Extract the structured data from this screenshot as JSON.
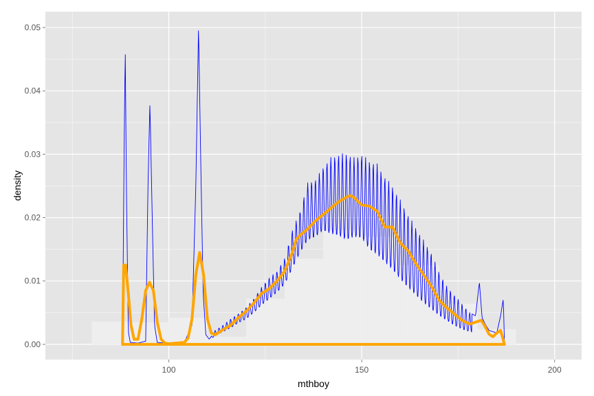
{
  "chart_data": {
    "type": "area",
    "title": "",
    "xlabel": "mthboy",
    "ylabel": "density",
    "xlim": [
      68,
      207
    ],
    "ylim": [
      -0.0024,
      0.0525
    ],
    "x_ticks": [
      100,
      150,
      200
    ],
    "x_tick_labels": [
      "100",
      "150",
      "200"
    ],
    "y_ticks": [
      0.0,
      0.01,
      0.02,
      0.03,
      0.04,
      0.05
    ],
    "y_tick_labels": [
      "0.00",
      "0.01",
      "0.02",
      "0.03",
      "0.04",
      "0.05"
    ],
    "grid": true,
    "legend": "none",
    "colors": {
      "panel": "#e5e5e5",
      "grid_major": "#ffffff",
      "grid_minor": "#f2f2f2",
      "histogram": "#eeeeee",
      "fine_density": "#0000ff",
      "smooth_density": "#ffa500"
    },
    "histogram": {
      "bins": [
        {
          "x0": 80,
          "x1": 90,
          "y": 0.0036
        },
        {
          "x0": 90,
          "x1": 100,
          "y": 0.0035
        },
        {
          "x0": 100,
          "x1": 110,
          "y": 0.0042
        },
        {
          "x0": 110,
          "x1": 120,
          "y": 0.0012
        },
        {
          "x0": 120,
          "x1": 130,
          "y": 0.0072
        },
        {
          "x0": 130,
          "x1": 140,
          "y": 0.0135
        },
        {
          "x0": 140,
          "x1": 150,
          "y": 0.018
        },
        {
          "x0": 150,
          "x1": 160,
          "y": 0.017
        },
        {
          "x0": 160,
          "x1": 170,
          "y": 0.0125
        },
        {
          "x0": 170,
          "x1": 180,
          "y": 0.0064
        },
        {
          "x0": 180,
          "x1": 190,
          "y": 0.0024
        }
      ]
    },
    "series": [
      {
        "kind": "fine_density",
        "x": [
          88,
          88.4,
          88.7,
          89.0,
          89.5,
          90,
          92,
          94,
          94.6,
          95.1,
          95.7,
          96.3,
          97,
          100,
          104,
          106,
          107,
          107.7,
          108.3,
          108.9,
          109.6,
          110.5,
          112,
          114,
          116,
          118,
          120,
          122,
          124,
          126,
          128,
          130,
          132,
          134,
          136,
          138,
          140,
          142,
          144,
          146,
          148,
          150,
          152,
          154,
          156,
          158,
          160,
          162,
          164,
          166,
          168,
          170,
          172,
          174,
          176,
          178,
          179.5,
          180.5,
          181.2,
          182,
          183,
          185,
          186,
          186.7,
          187
        ],
        "y": [
          0,
          0.03,
          0.0472,
          0.025,
          0.002,
          0.0003,
          0.0002,
          0.0005,
          0.025,
          0.0382,
          0.02,
          0.003,
          0.0003,
          0.0002,
          0.0003,
          0.003,
          0.025,
          0.0502,
          0.028,
          0.008,
          0.0015,
          0.0008,
          0.0022,
          0.003,
          0.004,
          0.0048,
          0.0058,
          0.0072,
          0.009,
          0.0105,
          0.0115,
          0.0135,
          0.018,
          0.021,
          0.0255,
          0.026,
          0.028,
          0.0295,
          0.03,
          0.0302,
          0.0295,
          0.03,
          0.029,
          0.0285,
          0.0265,
          0.025,
          0.0228,
          0.0205,
          0.0185,
          0.0165,
          0.0145,
          0.0115,
          0.0092,
          0.0078,
          0.0064,
          0.005,
          0.0045,
          0.0098,
          0.0042,
          0.0032,
          0.0022,
          0.0018,
          0.0045,
          0.0072,
          0
        ],
        "low": [
          0,
          0,
          0,
          0,
          0,
          0,
          0,
          0,
          0,
          0,
          0,
          0,
          0,
          0,
          0,
          0,
          0,
          0,
          0,
          0,
          0.0008,
          0.0006,
          0.0014,
          0.002,
          0.0026,
          0.0034,
          0.004,
          0.005,
          0.0062,
          0.0072,
          0.0082,
          0.0095,
          0.012,
          0.0145,
          0.0165,
          0.017,
          0.018,
          0.0175,
          0.0172,
          0.0165,
          0.017,
          0.0168,
          0.015,
          0.0142,
          0.013,
          0.0118,
          0.0103,
          0.009,
          0.0078,
          0.0066,
          0.0056,
          0.0046,
          0.0038,
          0.003,
          0.0024,
          0.002,
          0.0018,
          0.0016,
          0.0015,
          0.0013,
          0.0012,
          0.0012,
          0.0012,
          0.0012,
          0
        ]
      },
      {
        "kind": "smooth_density",
        "x": [
          88,
          88.3,
          88.8,
          89.5,
          90.2,
          91,
          92,
          93,
          94,
          95,
          96,
          97,
          98,
          99,
          100,
          102,
          104,
          105,
          106,
          107,
          108,
          109,
          110,
          111,
          112,
          114,
          116,
          118,
          120,
          122,
          124,
          126,
          128,
          130,
          132,
          133,
          134,
          136,
          138,
          140,
          142,
          144,
          146,
          147,
          148,
          150,
          152,
          154,
          156,
          158,
          160,
          162,
          164,
          166,
          168,
          170,
          172,
          174,
          176,
          178,
          180,
          181,
          182,
          183,
          184,
          185,
          186,
          187
        ],
        "y": [
          0,
          0.0125,
          0.0125,
          0.008,
          0.003,
          0.0008,
          0.0008,
          0.004,
          0.0085,
          0.0098,
          0.0085,
          0.0035,
          0.0008,
          0.0002,
          0.0001,
          0.0002,
          0.0003,
          0.001,
          0.004,
          0.011,
          0.0145,
          0.011,
          0.004,
          0.0018,
          0.0015,
          0.0023,
          0.003,
          0.0042,
          0.0052,
          0.0065,
          0.008,
          0.0088,
          0.01,
          0.0115,
          0.0145,
          0.0165,
          0.0172,
          0.0182,
          0.0195,
          0.0205,
          0.0215,
          0.0225,
          0.0232,
          0.0235,
          0.0232,
          0.022,
          0.0218,
          0.021,
          0.0185,
          0.0185,
          0.016,
          0.0148,
          0.0128,
          0.011,
          0.0092,
          0.007,
          0.0058,
          0.0048,
          0.0038,
          0.0032,
          0.0036,
          0.0038,
          0.0028,
          0.0016,
          0.0012,
          0.0018,
          0.0022,
          0
        ]
      }
    ]
  }
}
